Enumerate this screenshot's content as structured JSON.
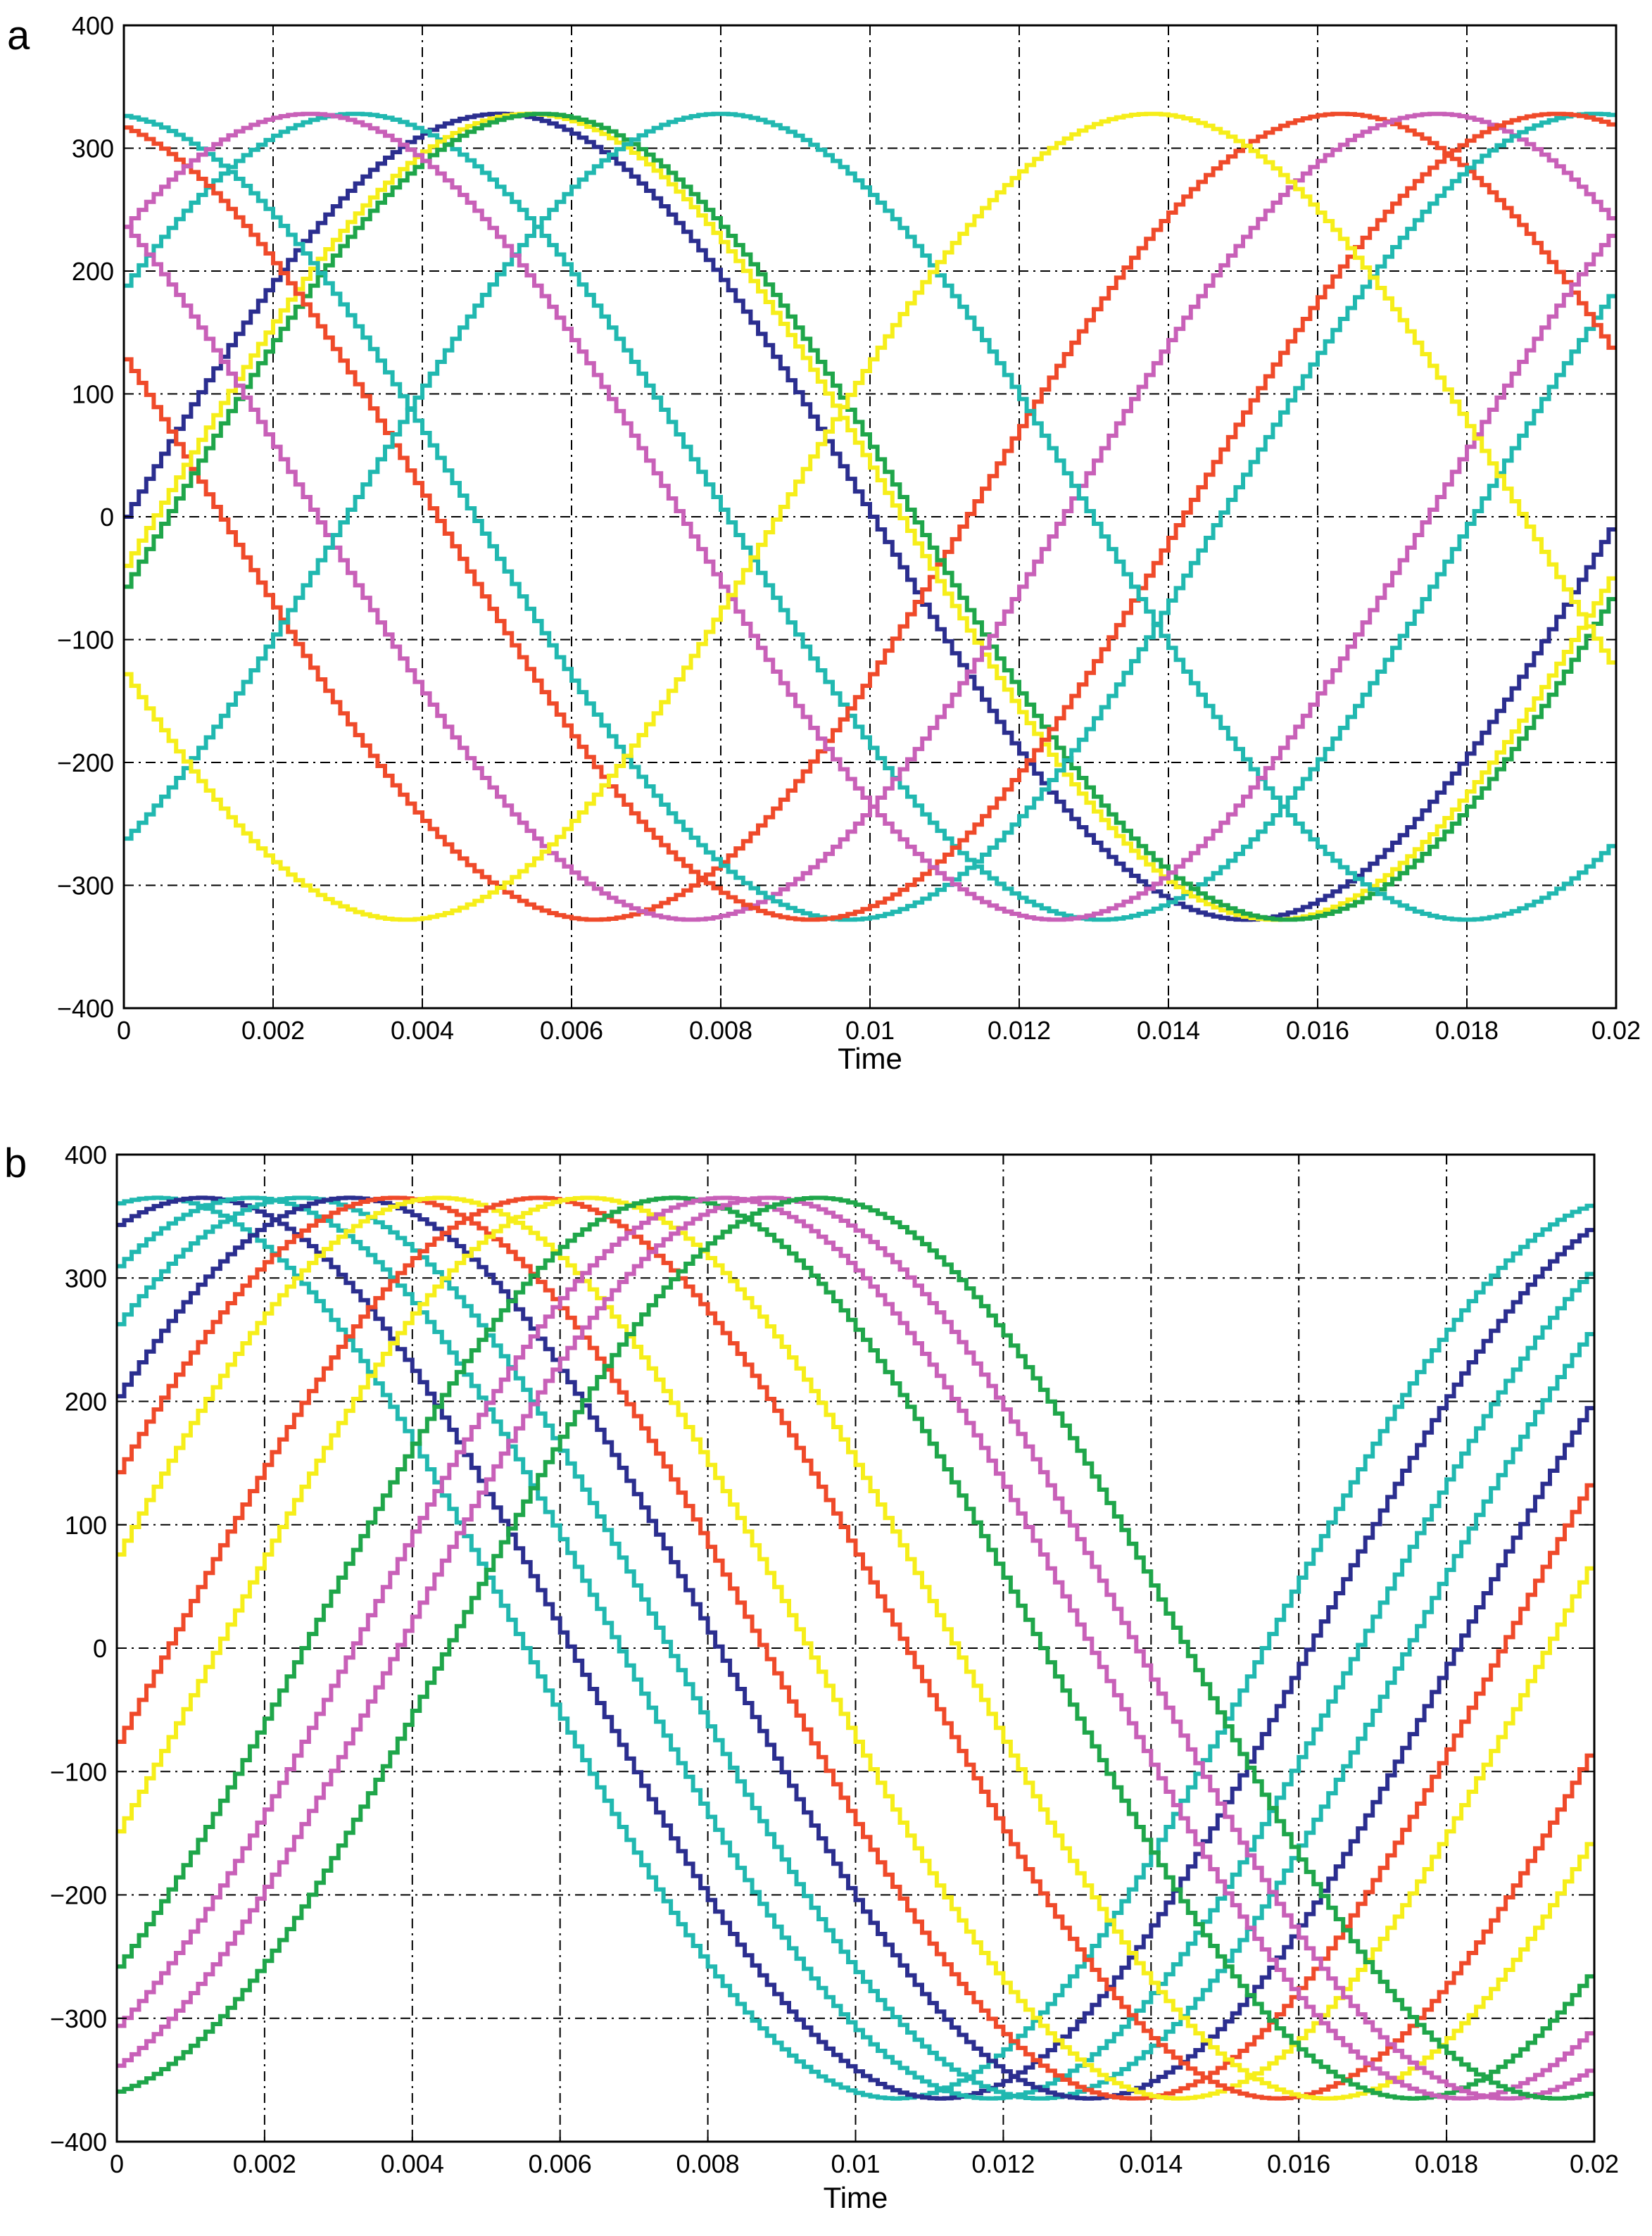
{
  "colors": {
    "navy": "#2b2e8f",
    "red": "#ef4a2a",
    "green": "#1fa64a",
    "teal": "#21b8b0",
    "magenta": "#c860b8",
    "yellow": "#f6ee1a"
  },
  "chart_data": [
    {
      "type": "line",
      "panel_label": "a",
      "xlabel": "Time",
      "ylabel": "",
      "xlim": [
        0,
        0.02
      ],
      "ylim": [
        -400,
        400
      ],
      "x_ticks": [
        "0",
        "0.002",
        "0.004",
        "0.006",
        "0.008",
        "0.01",
        "0.012",
        "0.014",
        "0.016",
        "0.018",
        "0.02"
      ],
      "y_ticks": [
        "400",
        "300",
        "200",
        "100",
        "0",
        "−100",
        "−200",
        "−300",
        "−400"
      ],
      "grid": true,
      "style": "staircase",
      "amplitude": 328,
      "frequency_hz": 50,
      "series": [
        {
          "color": "navy",
          "phase_deg": 0
        },
        {
          "color": "teal",
          "phase_deg": 35
        },
        {
          "color": "red",
          "phase_deg": 157
        },
        {
          "color": "yellow",
          "phase_deg": -7
        },
        {
          "color": "green",
          "phase_deg": -10
        },
        {
          "color": "magenta",
          "phase_deg": 134
        },
        {
          "color": "teal",
          "phase_deg": 96
        },
        {
          "color": "red",
          "phase_deg": 105
        },
        {
          "color": "teal",
          "phase_deg": -53
        },
        {
          "color": "magenta",
          "phase_deg": 46
        },
        {
          "color": "yellow",
          "phase_deg": -157
        }
      ]
    },
    {
      "type": "line",
      "panel_label": "b",
      "xlabel": "Time",
      "ylabel": "",
      "xlim": [
        0,
        0.02
      ],
      "ylim": [
        -400,
        400
      ],
      "x_ticks": [
        "0",
        "0.002",
        "0.004",
        "0.006",
        "0.008",
        "0.01",
        "0.012",
        "0.014",
        "0.016",
        "0.018",
        "0.02"
      ],
      "y_ticks": [
        "400",
        "300",
        "200",
        "100",
        "0",
        "−100",
        "−200",
        "−300",
        "−400"
      ],
      "grid": true,
      "style": "staircase",
      "amplitude": 365,
      "frequency_hz": 50,
      "series": [
        {
          "color": "teal",
          "phase_deg": 81
        },
        {
          "color": "navy",
          "phase_deg": 70
        },
        {
          "color": "teal",
          "phase_deg": 58
        },
        {
          "color": "teal",
          "phase_deg": 46
        },
        {
          "color": "navy",
          "phase_deg": 34
        },
        {
          "color": "red",
          "phase_deg": 23
        },
        {
          "color": "yellow",
          "phase_deg": 12
        },
        {
          "color": "red",
          "phase_deg": -12
        },
        {
          "color": "yellow",
          "phase_deg": -24
        },
        {
          "color": "green",
          "phase_deg": -45
        },
        {
          "color": "magenta",
          "phase_deg": -57
        },
        {
          "color": "magenta",
          "phase_deg": -68
        },
        {
          "color": "green",
          "phase_deg": -80
        }
      ]
    }
  ]
}
